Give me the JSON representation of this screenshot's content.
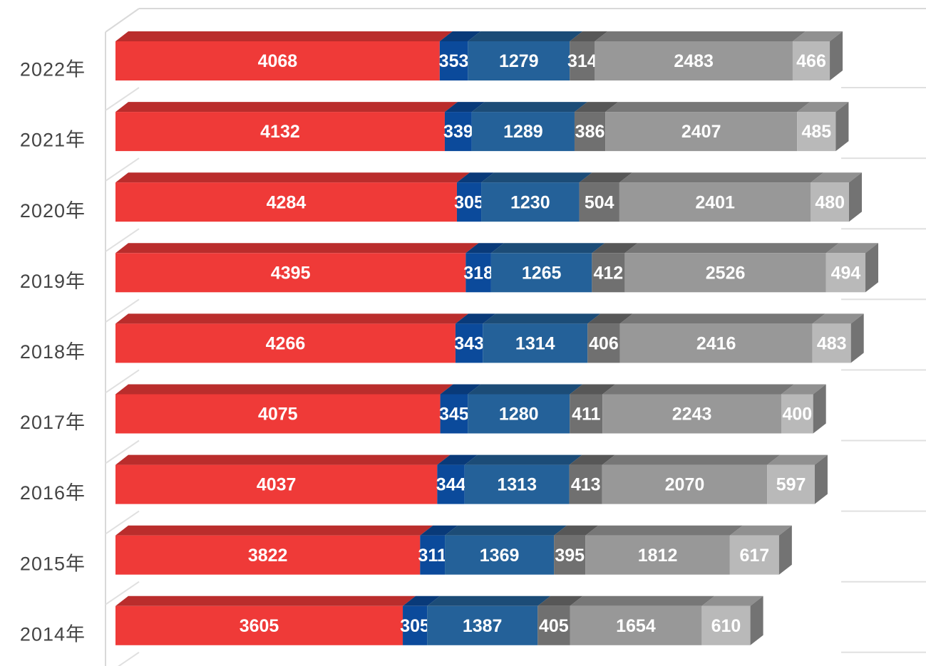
{
  "chart_data": {
    "type": "bar",
    "orientation": "horizontal",
    "stacked": true,
    "three_d": true,
    "categories": [
      "2022年",
      "2021年",
      "2020年",
      "2019年",
      "2018年",
      "2017年",
      "2016年",
      "2015年",
      "2014年"
    ],
    "series": [
      {
        "color": "#ef3a38",
        "values": [
          4068,
          4132,
          4284,
          4395,
          4266,
          4075,
          4037,
          3822,
          3605
        ]
      },
      {
        "color": "#0b4a9b",
        "values": [
          353,
          339,
          305,
          318,
          343,
          345,
          344,
          311,
          305
        ]
      },
      {
        "color": "#246199",
        "values": [
          1279,
          1289,
          1230,
          1265,
          1314,
          1280,
          1313,
          1369,
          1387
        ]
      },
      {
        "color": "#707070",
        "values": [
          314,
          386,
          504,
          412,
          406,
          411,
          413,
          395,
          405
        ]
      },
      {
        "color": "#989898",
        "values": [
          2483,
          2407,
          2401,
          2526,
          2416,
          2243,
          2070,
          1812,
          1654
        ]
      },
      {
        "color": "#b9b9b9",
        "values": [
          466,
          485,
          480,
          494,
          483,
          400,
          597,
          617,
          610
        ]
      }
    ],
    "xlim": [
      0,
      10000
    ]
  }
}
